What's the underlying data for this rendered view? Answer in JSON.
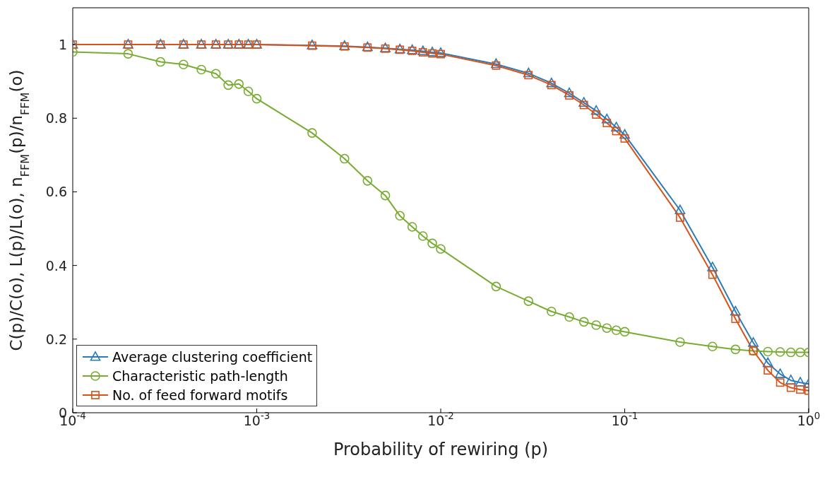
{
  "chart_data": {
    "type": "line",
    "xlabel": "Probability of rewiring (p)",
    "ylabel": "C(p)/C(o), L(p)/L(o), n$_{FFM}$(p)/n$_{FFM}$(o)",
    "log": "x",
    "grid": false,
    "legend": "bottom left",
    "xlim": [
      0.0001,
      1
    ],
    "xticks": [
      {
        "value": 0.0001,
        "label": "10$^{-4}$"
      },
      {
        "value": 0.001,
        "label": "10$^{-3}$"
      },
      {
        "value": 0.01,
        "label": "10$^{-2}$"
      },
      {
        "value": 0.1,
        "label": "10$^{-1}$"
      },
      {
        "value": 1,
        "label": "10$^{0}$"
      }
    ],
    "ylim": [
      0,
      1.1
    ],
    "yticks": [
      0,
      0.2,
      0.4,
      0.6,
      0.8,
      1
    ],
    "x": [
      0.0001,
      0.0002,
      0.0003,
      0.0004,
      0.0005,
      0.0006,
      0.0007,
      0.0008,
      0.0009,
      0.001,
      0.002,
      0.003,
      0.004,
      0.005,
      0.006,
      0.007,
      0.008,
      0.009,
      0.01,
      0.02,
      0.03,
      0.04,
      0.05,
      0.06,
      0.07,
      0.08,
      0.09,
      0.1,
      0.2,
      0.3,
      0.4,
      0.5,
      0.6,
      0.7,
      0.8,
      0.9,
      1
    ],
    "series": [
      {
        "name": "Average clustering coefficient",
        "color": "#2b7bba",
        "marker": "triangle",
        "values": [
          1,
          1,
          1,
          1,
          1,
          1,
          1,
          1,
          1,
          1,
          0.998,
          0.996,
          0.993,
          0.99,
          0.987,
          0.985,
          0.982,
          0.979,
          0.977,
          0.947,
          0.922,
          0.895,
          0.868,
          0.842,
          0.82,
          0.797,
          0.775,
          0.755,
          0.55,
          0.395,
          0.275,
          0.19,
          0.135,
          0.105,
          0.088,
          0.082,
          0.078
        ]
      },
      {
        "name": "Characteristic path-length",
        "color": "#77ac30",
        "marker": "circle",
        "values": [
          0.98,
          0.975,
          0.953,
          0.946,
          0.932,
          0.921,
          0.89,
          0.893,
          0.873,
          0.853,
          0.76,
          0.69,
          0.63,
          0.59,
          0.535,
          0.505,
          0.48,
          0.46,
          0.445,
          0.343,
          0.303,
          0.275,
          0.26,
          0.247,
          0.238,
          0.23,
          0.224,
          0.22,
          0.192,
          0.18,
          0.172,
          0.168,
          0.166,
          0.165,
          0.164,
          0.164,
          0.164
        ]
      },
      {
        "name": "No. of feed forward motifs",
        "color": "#d95319",
        "marker": "square",
        "values": [
          1,
          1,
          1,
          1,
          1,
          1,
          1,
          1,
          1,
          1,
          0.997,
          0.995,
          0.992,
          0.989,
          0.986,
          0.983,
          0.979,
          0.976,
          0.974,
          0.943,
          0.917,
          0.89,
          0.862,
          0.836,
          0.81,
          0.787,
          0.765,
          0.745,
          0.53,
          0.375,
          0.255,
          0.168,
          0.115,
          0.082,
          0.068,
          0.063,
          0.06
        ]
      }
    ]
  }
}
